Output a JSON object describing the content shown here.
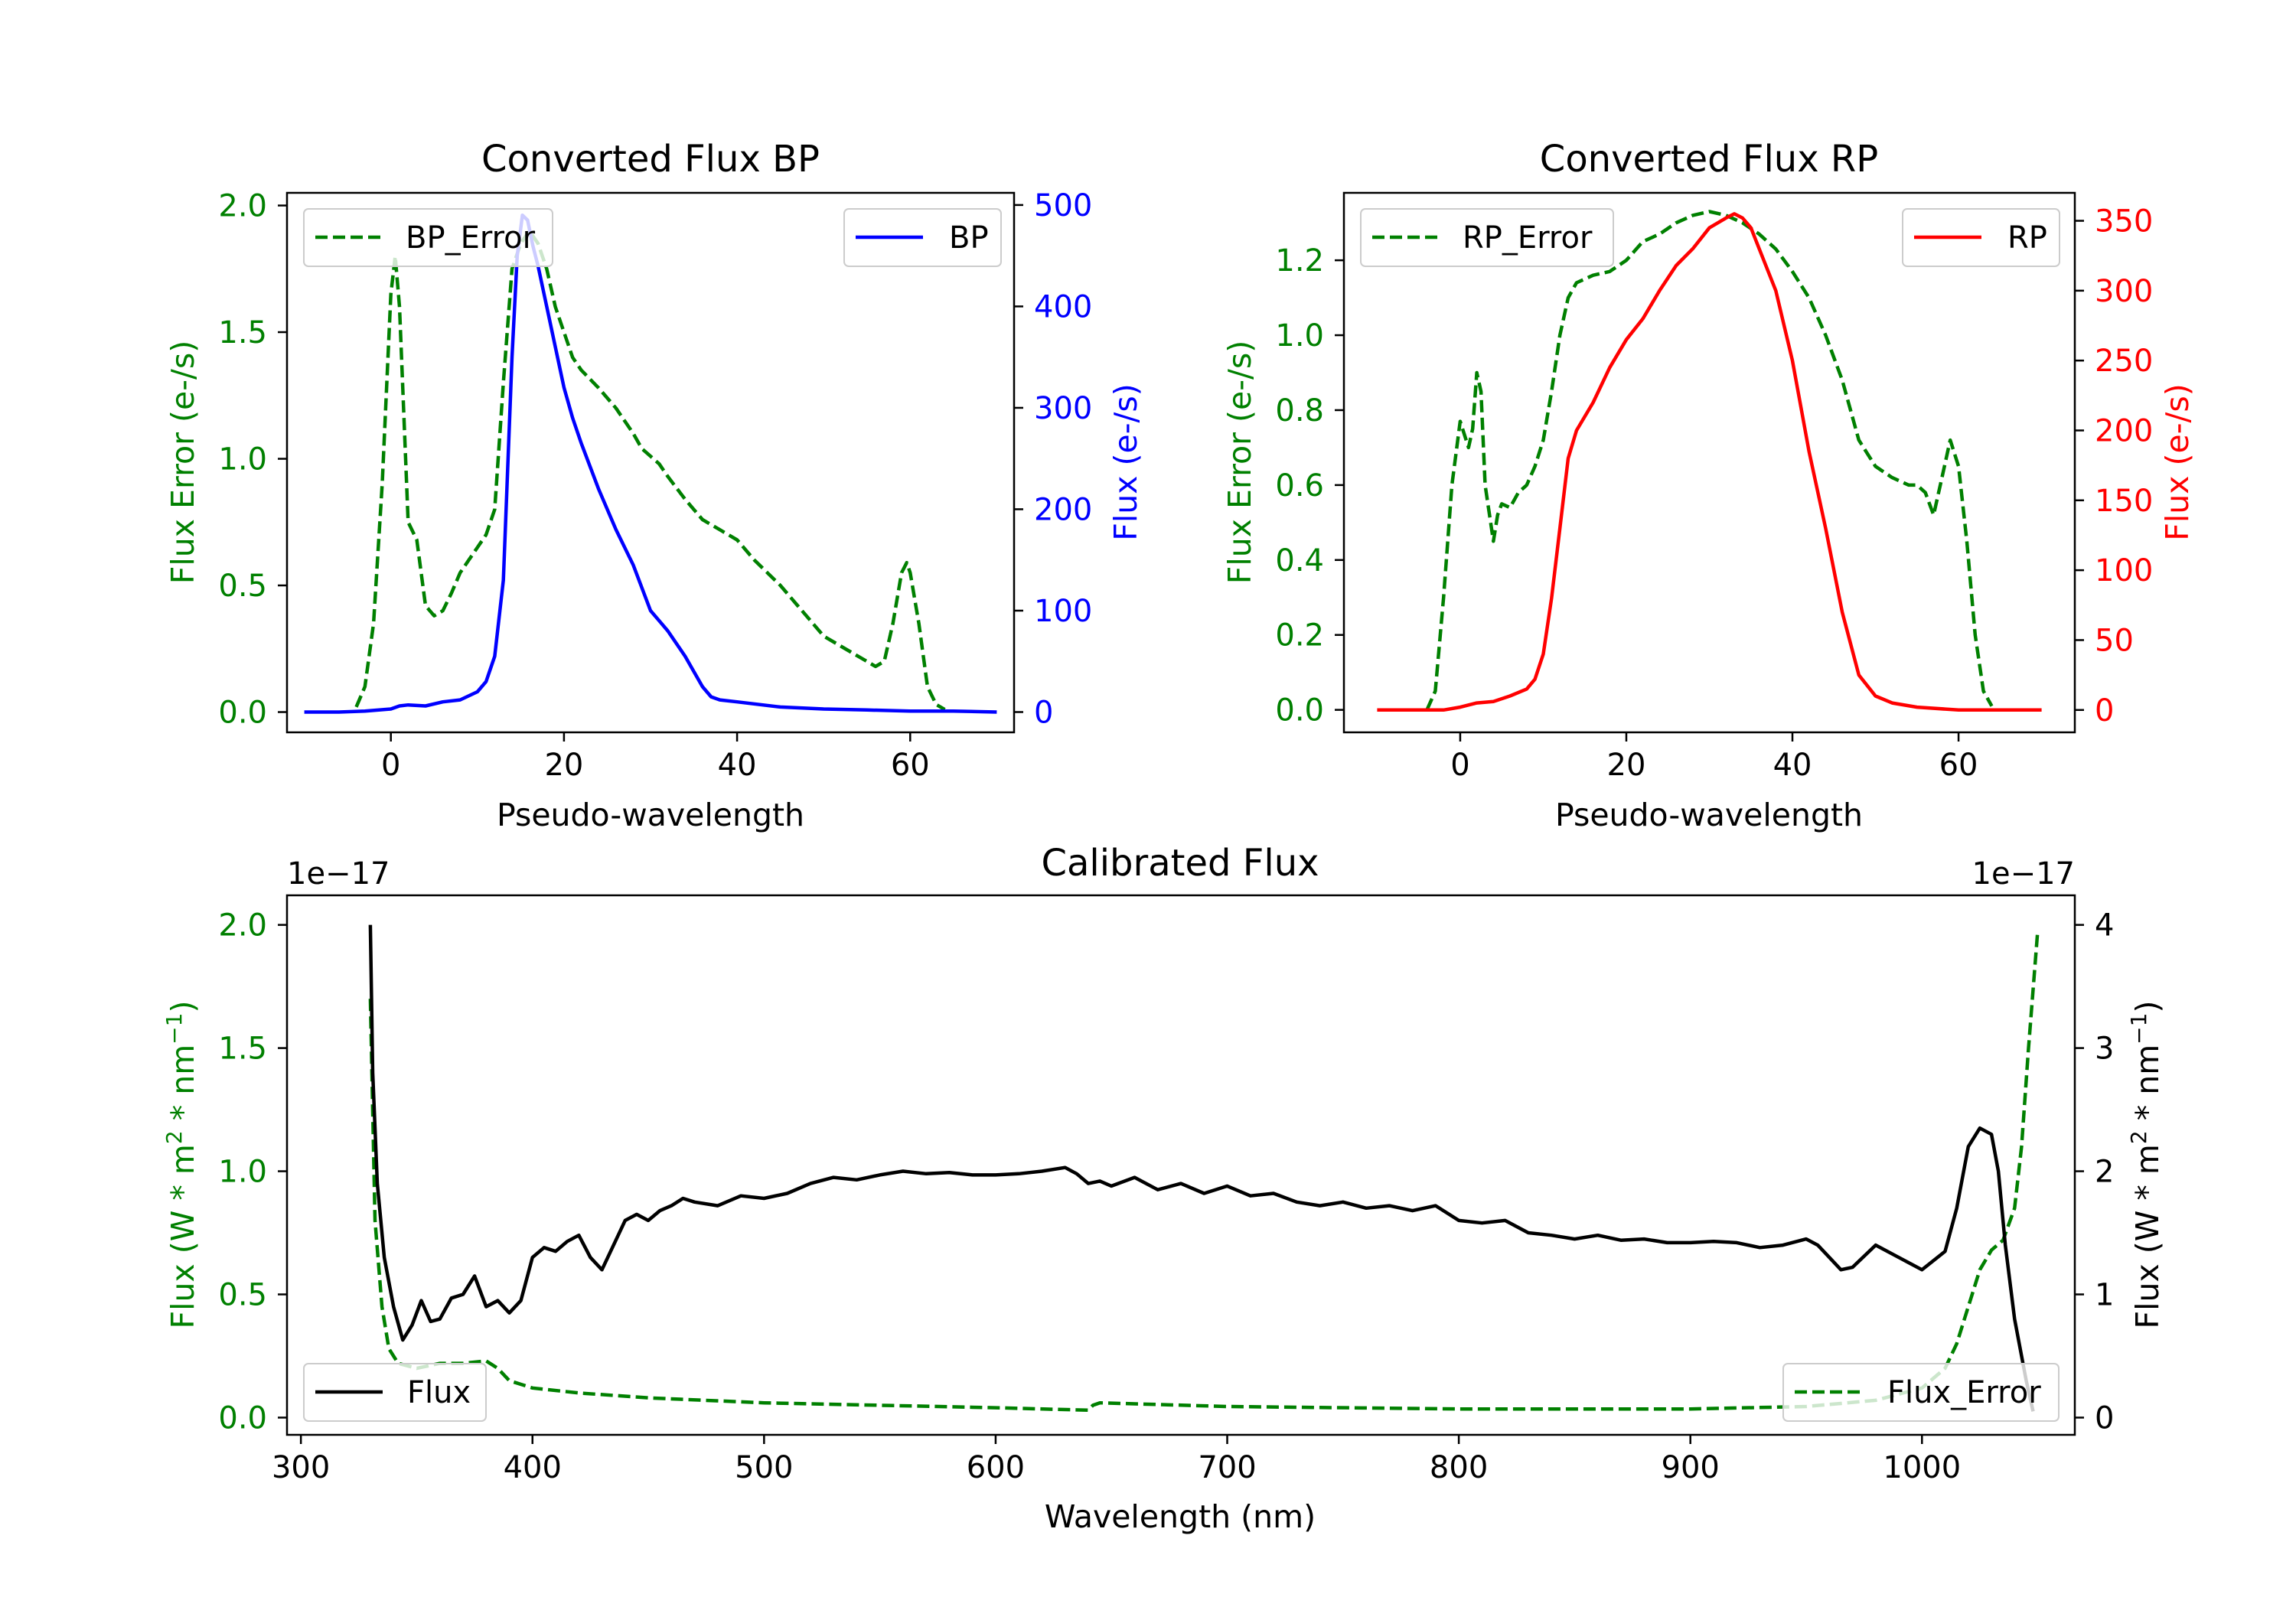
{
  "colors": {
    "green": "#008000",
    "blue": "#0000ff",
    "red": "#ff0000",
    "black": "#000000"
  },
  "chart_data": [
    {
      "id": "bp",
      "type": "line",
      "title": "Converted Flux BP",
      "xlabel": "Pseudo-wavelength",
      "ylabel_left": "Flux Error (e-/s)",
      "ylabel_right": "Flux (e-/s)",
      "xlim": [
        -12,
        72
      ],
      "ylim_left": [
        -0.08,
        2.05
      ],
      "ylim_right": [
        -20,
        512
      ],
      "xticks": [
        0,
        20,
        40,
        60
      ],
      "yticks_left": [
        0.0,
        0.5,
        1.0,
        1.5,
        2.0
      ],
      "yticks_right": [
        0,
        100,
        200,
        300,
        400,
        500
      ],
      "left_color": "green",
      "right_color": "blue",
      "series": [
        {
          "name": "BP_Error",
          "axis": "left",
          "style": "dashed",
          "color": "green",
          "legend": "top-left",
          "x": [
            -4,
            -3,
            -2,
            -1,
            0,
            0.5,
            1,
            2,
            3,
            4,
            5,
            6,
            7,
            8,
            9,
            10,
            11,
            12,
            13,
            14,
            15,
            16,
            17,
            18,
            19,
            20,
            21,
            22,
            24,
            26,
            27,
            28,
            29,
            30,
            31,
            32,
            34,
            36,
            38,
            40,
            42,
            45,
            48,
            50,
            52,
            54,
            56,
            57,
            58,
            59,
            59.6,
            60,
            61,
            62,
            63,
            64
          ],
          "y": [
            0.02,
            0.1,
            0.35,
            0.9,
            1.65,
            1.8,
            1.6,
            0.75,
            0.68,
            0.42,
            0.38,
            0.4,
            0.47,
            0.55,
            0.6,
            0.65,
            0.7,
            0.8,
            1.3,
            1.75,
            1.85,
            1.9,
            1.85,
            1.75,
            1.6,
            1.5,
            1.4,
            1.35,
            1.28,
            1.2,
            1.15,
            1.1,
            1.04,
            1.01,
            0.98,
            0.93,
            0.84,
            0.76,
            0.72,
            0.68,
            0.6,
            0.5,
            0.38,
            0.3,
            0.26,
            0.22,
            0.18,
            0.2,
            0.35,
            0.55,
            0.59,
            0.55,
            0.35,
            0.1,
            0.03,
            0.01
          ]
        },
        {
          "name": "BP",
          "axis": "right",
          "style": "solid",
          "color": "blue",
          "legend": "top-right",
          "x": [
            -10,
            -6,
            -3,
            0,
            1,
            2,
            4,
            6,
            8,
            10,
            11,
            12,
            13,
            14,
            14.6,
            15.2,
            15.8,
            16.4,
            17,
            18,
            19,
            20,
            21,
            22,
            24,
            26,
            28,
            30,
            31,
            32,
            34,
            36,
            37,
            38,
            40,
            45,
            50,
            55,
            60,
            65,
            70
          ],
          "y": [
            0,
            0,
            1,
            3,
            6,
            7,
            6,
            10,
            12,
            20,
            30,
            55,
            130,
            350,
            450,
            490,
            485,
            460,
            440,
            400,
            360,
            320,
            290,
            265,
            220,
            180,
            145,
            100,
            90,
            80,
            55,
            25,
            15,
            12,
            10,
            5,
            3,
            2,
            1,
            1,
            0
          ]
        }
      ]
    },
    {
      "id": "rp",
      "type": "line",
      "title": "Converted Flux RP",
      "xlabel": "Pseudo-wavelength",
      "ylabel_left": "Flux Error (e-/s)",
      "ylabel_right": "Flux (e-/s)",
      "xlim": [
        -14,
        74
      ],
      "ylim_left": [
        -0.06,
        1.38
      ],
      "ylim_right": [
        -16,
        370
      ],
      "xticks": [
        0,
        20,
        40,
        60
      ],
      "yticks_left": [
        0.0,
        0.2,
        0.4,
        0.6,
        0.8,
        1.0,
        1.2
      ],
      "yticks_right": [
        0,
        50,
        100,
        150,
        200,
        250,
        300,
        350
      ],
      "left_color": "green",
      "right_color": "red",
      "series": [
        {
          "name": "RP_Error",
          "axis": "left",
          "style": "dashed",
          "color": "green",
          "legend": "top-left",
          "x": [
            -4,
            -3,
            -2,
            -1,
            0,
            1,
            1.5,
            2,
            2.5,
            3,
            4,
            4.5,
            5,
            6,
            7,
            8,
            9,
            10,
            11,
            12,
            13,
            14,
            16,
            18,
            20,
            22,
            24,
            26,
            28,
            30,
            32,
            34,
            36,
            38,
            40,
            42,
            44,
            46,
            48,
            50,
            52,
            54,
            55,
            56,
            57,
            58,
            59,
            60,
            61,
            62,
            63,
            64
          ],
          "y": [
            0.0,
            0.05,
            0.3,
            0.6,
            0.77,
            0.7,
            0.75,
            0.9,
            0.85,
            0.6,
            0.45,
            0.52,
            0.55,
            0.54,
            0.58,
            0.6,
            0.65,
            0.72,
            0.85,
            1.0,
            1.1,
            1.14,
            1.16,
            1.17,
            1.2,
            1.25,
            1.27,
            1.3,
            1.32,
            1.33,
            1.32,
            1.3,
            1.27,
            1.23,
            1.17,
            1.1,
            1.0,
            0.88,
            0.72,
            0.65,
            0.62,
            0.6,
            0.6,
            0.58,
            0.52,
            0.62,
            0.72,
            0.65,
            0.45,
            0.2,
            0.05,
            0.01
          ]
        },
        {
          "name": "RP",
          "axis": "right",
          "style": "solid",
          "color": "red",
          "legend": "top-right",
          "x": [
            -10,
            -5,
            -2,
            0,
            2,
            4,
            6,
            8,
            9,
            10,
            11,
            12,
            13,
            14,
            16,
            18,
            20,
            22,
            24,
            26,
            28,
            30,
            32,
            33,
            34,
            35,
            36,
            38,
            40,
            42,
            44,
            46,
            48,
            50,
            52,
            55,
            60,
            65,
            70
          ],
          "y": [
            0,
            0,
            0,
            2,
            5,
            6,
            10,
            15,
            22,
            40,
            80,
            130,
            180,
            200,
            220,
            245,
            265,
            280,
            300,
            318,
            330,
            345,
            352,
            355,
            352,
            345,
            330,
            300,
            250,
            185,
            130,
            70,
            25,
            10,
            5,
            2,
            0,
            0,
            0
          ]
        }
      ]
    },
    {
      "id": "calibrated",
      "type": "line",
      "title": "Calibrated Flux",
      "xlabel": "Wavelength (nm)",
      "ylabel_left": "Flux (W * m$^2$ * nm$^{-1}$)",
      "ylabel_right": "Flux (W * m$^2$ * nm$^{-1}$)",
      "offset_left": "1e−17",
      "offset_right": "1e−17",
      "xlim": [
        294,
        1066
      ],
      "ylim_left": [
        -0.07,
        2.12
      ],
      "ylim_right": [
        -0.14,
        4.24
      ],
      "xticks": [
        300,
        400,
        500,
        600,
        700,
        800,
        900,
        1000
      ],
      "yticks_left": [
        0.0,
        0.5,
        1.0,
        1.5,
        2.0
      ],
      "yticks_right": [
        0,
        1,
        2,
        3,
        4
      ],
      "left_color": "green",
      "right_color": "black",
      "series": [
        {
          "name": "Flux_Error",
          "axis": "left",
          "style": "dashed",
          "color": "green",
          "legend": "bottom-right",
          "x": [
            330,
            332,
            335,
            338,
            342,
            350,
            360,
            370,
            380,
            385,
            390,
            400,
            420,
            450,
            500,
            550,
            600,
            640,
            642,
            645,
            700,
            800,
            900,
            950,
            980,
            1000,
            1010,
            1015,
            1020,
            1025,
            1030,
            1035,
            1040,
            1043,
            1046,
            1050
          ],
          "y": [
            1.7,
            0.8,
            0.45,
            0.28,
            0.22,
            0.2,
            0.22,
            0.22,
            0.23,
            0.2,
            0.15,
            0.12,
            0.1,
            0.08,
            0.06,
            0.05,
            0.04,
            0.03,
            0.05,
            0.06,
            0.045,
            0.035,
            0.035,
            0.045,
            0.07,
            0.12,
            0.2,
            0.3,
            0.45,
            0.6,
            0.68,
            0.72,
            0.85,
            1.1,
            1.5,
            1.98
          ]
        },
        {
          "name": "Flux",
          "axis": "right",
          "style": "solid",
          "color": "black",
          "legend": "bottom-left",
          "x": [
            330,
            331,
            333,
            336,
            340,
            344,
            348,
            352,
            356,
            360,
            365,
            370,
            375,
            380,
            385,
            390,
            395,
            400,
            405,
            410,
            415,
            420,
            425,
            430,
            435,
            440,
            445,
            450,
            455,
            460,
            465,
            470,
            480,
            490,
            500,
            510,
            520,
            530,
            540,
            550,
            560,
            570,
            580,
            590,
            600,
            610,
            620,
            630,
            635,
            640,
            645,
            650,
            660,
            670,
            680,
            690,
            700,
            710,
            720,
            730,
            740,
            750,
            760,
            770,
            780,
            790,
            800,
            810,
            820,
            830,
            840,
            850,
            860,
            870,
            880,
            890,
            900,
            910,
            920,
            930,
            940,
            950,
            955,
            960,
            965,
            970,
            980,
            990,
            1000,
            1010,
            1015,
            1020,
            1025,
            1030,
            1033,
            1036,
            1040,
            1045,
            1048
          ],
          "y": [
            4.0,
            2.8,
            1.9,
            1.3,
            0.9,
            0.63,
            0.75,
            0.95,
            0.78,
            0.8,
            0.97,
            1.0,
            1.15,
            0.9,
            0.95,
            0.85,
            0.95,
            1.3,
            1.38,
            1.35,
            1.43,
            1.48,
            1.3,
            1.2,
            1.4,
            1.6,
            1.65,
            1.6,
            1.68,
            1.72,
            1.78,
            1.75,
            1.72,
            1.8,
            1.78,
            1.82,
            1.9,
            1.95,
            1.93,
            1.97,
            2.0,
            1.98,
            1.99,
            1.97,
            1.97,
            1.98,
            2.0,
            2.03,
            1.98,
            1.9,
            1.92,
            1.88,
            1.95,
            1.85,
            1.9,
            1.82,
            1.88,
            1.8,
            1.82,
            1.75,
            1.72,
            1.75,
            1.7,
            1.72,
            1.68,
            1.72,
            1.6,
            1.58,
            1.6,
            1.5,
            1.48,
            1.45,
            1.48,
            1.44,
            1.45,
            1.42,
            1.42,
            1.43,
            1.42,
            1.38,
            1.4,
            1.45,
            1.4,
            1.3,
            1.2,
            1.22,
            1.4,
            1.3,
            1.2,
            1.35,
            1.7,
            2.2,
            2.35,
            2.3,
            2.0,
            1.4,
            0.8,
            0.3,
            0.05
          ]
        }
      ]
    }
  ]
}
